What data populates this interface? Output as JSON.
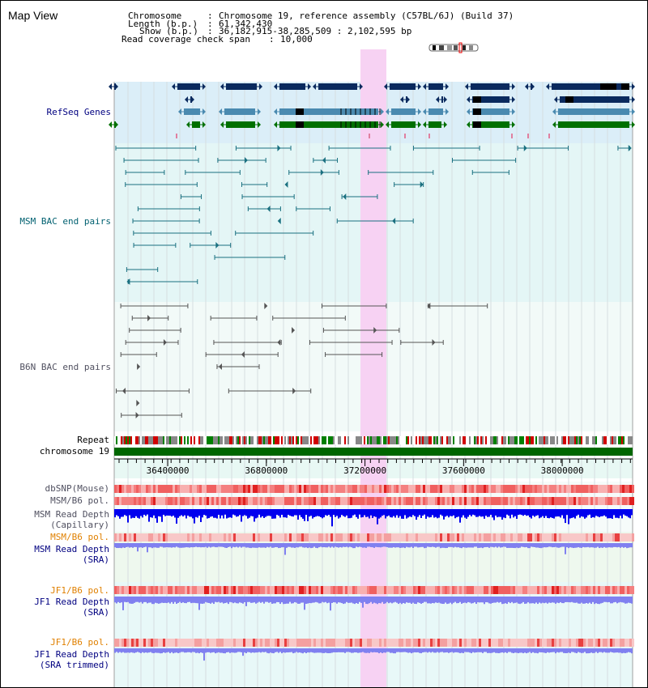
{
  "page_title": "Map View",
  "header": {
    "chromosome_key": "Chromosome",
    "chromosome_value": "Chromosome 19, reference assembly (C57BL/6J) (Build 37)",
    "length_key": "Length (b.p.)",
    "length_value": "61,342,430",
    "show_key": "Show (b.p.)",
    "show_value": "36,182,915-38,285,509 : 2,102,595 bp",
    "coverage_key": "Read coverage check span",
    "coverage_value": "10,000"
  },
  "tracks": {
    "refseq_label": "RefSeq Genes",
    "msm_bac_label": "MSM BAC end pairs",
    "b6n_bac_label": "B6N BAC end pairs",
    "repeat_label": "Repeat",
    "chromosome_label": "chromosome 19",
    "dbsnp_label": "dbSNP(Mouse)",
    "msm_b6_pol_label": "MSM/B6 pol.",
    "msm_depth_cap_label_1": "MSM Read Depth",
    "msm_depth_cap_label_2": "(Capillary)",
    "msm_b6_pol_sra_label": "MSM/B6 pol.",
    "msm_depth_sra_label_1": "MSM Read Depth",
    "msm_depth_sra_label_2": "(SRA)",
    "jf1_pol_label": "JF1/B6 pol.",
    "jf1_depth_label_1": "JF1 Read Depth",
    "jf1_depth_label_2": "(SRA)",
    "jf1_pol_trim_label": "JF1/B6 pol.",
    "jf1_depth_trim_label_1": "JF1 Read Depth",
    "jf1_depth_trim_label_2": "(SRA trimmed)"
  },
  "axis": {
    "ticks": [
      "36400000",
      "36800000",
      "37200000",
      "37600000",
      "38000000"
    ],
    "range_start": 36182915,
    "range_end": 38285509
  },
  "colors": {
    "refseq_navy": "#0a2a5e",
    "refseq_blue": "#4a8ab0",
    "refseq_green": "#007000",
    "msm_teal": "#1a7080",
    "b6n_gray": "#555555",
    "highlight_pink": "#f7d2f3",
    "chromosome_green": "#006600",
    "depth_blue": "#0000ee",
    "depth_lightblue": "#8080f0",
    "label_navy": "#000080",
    "label_orange": "#e08000",
    "label_teal": "#006070",
    "label_gray": "#505060"
  }
}
